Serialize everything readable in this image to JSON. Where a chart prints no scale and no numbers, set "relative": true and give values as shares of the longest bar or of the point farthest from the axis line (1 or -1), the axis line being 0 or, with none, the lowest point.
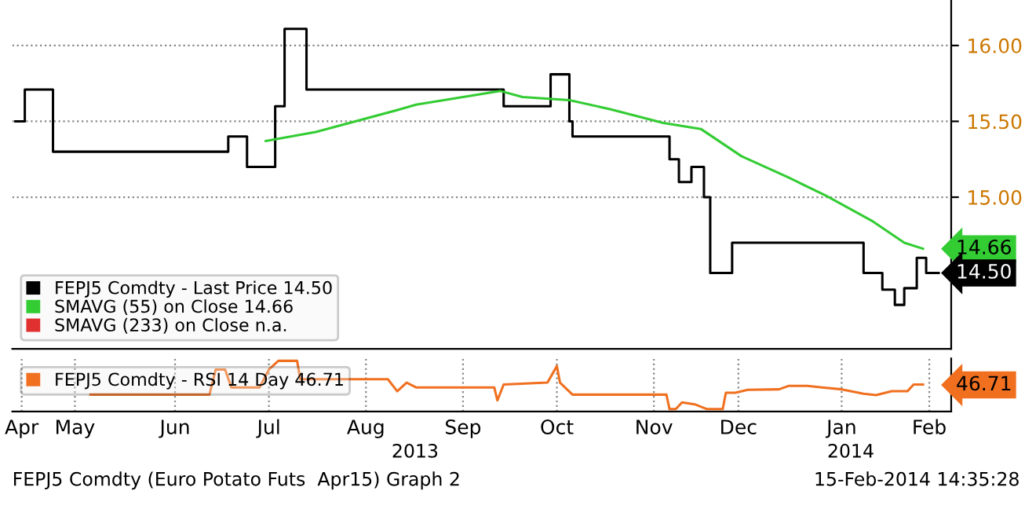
{
  "chart_data": [
    {
      "type": "step",
      "xlim": [
        "2013-04-24",
        "2014-02-18"
      ],
      "ylim": [
        14.0,
        16.3
      ],
      "yticks": [
        {
          "value": 15,
          "label": "15.00"
        },
        {
          "value": 15.5,
          "label": "15.50"
        },
        {
          "value": 16,
          "label": "16.00"
        }
      ],
      "grid": true,
      "legend": "bottom left",
      "tick_labels": "y",
      "series": [
        {
          "name": "FEPJ5 Comdty - Last Price 14.50",
          "color": "#000000",
          "x": [
            "2013-04-25",
            "2013-04-28",
            "2013-05-07",
            "2013-07-02",
            "2013-07-08",
            "2013-07-17",
            "2013-07-20",
            "2013-07-27",
            "2013-09-28",
            "2013-10-13",
            "2013-10-19",
            "2013-10-20",
            "2013-11-20",
            "2013-11-23",
            "2013-11-27",
            "2013-12-01",
            "2013-12-03",
            "2013-12-10",
            "2014-01-21",
            "2014-01-27",
            "2014-01-31",
            "2014-02-03",
            "2014-02-07",
            "2014-02-10",
            "2014-02-14"
          ],
          "values": [
            15.5,
            15.71,
            15.3,
            15.4,
            15.2,
            15.6,
            16.11,
            15.71,
            15.6,
            15.81,
            15.5,
            15.4,
            15.25,
            15.1,
            15.2,
            15.0,
            14.5,
            14.7,
            14.5,
            14.39,
            14.29,
            14.4,
            14.6,
            14.5,
            14.5
          ]
        },
        {
          "name": "SMAVG (55) on Close 14.66",
          "color": "#33cc33",
          "type": "line",
          "x": [
            "2013-07-14",
            "2013-07-30",
            "2013-08-26",
            "2013-08-31",
            "2013-09-27",
            "2013-10-04",
            "2013-10-19",
            "2013-11-01",
            "2013-11-18",
            "2013-11-30",
            "2013-12-13",
            "2013-12-28",
            "2014-01-09",
            "2014-01-24",
            "2014-02-03",
            "2014-02-09"
          ],
          "values": [
            15.37,
            15.43,
            15.58,
            15.61,
            15.7,
            15.66,
            15.64,
            15.58,
            15.49,
            15.45,
            15.27,
            15.13,
            15.01,
            14.84,
            14.7,
            14.66
          ]
        },
        {
          "name": "SMAVG (233) on Close n.a.",
          "color": "#e03030",
          "type": "line"
        }
      ],
      "annotations": [
        {
          "text": "14.66",
          "x": "2014-02-09",
          "y": 14.66
        },
        {
          "text": "14.50",
          "x": "2014-02-14",
          "y": 14.5
        }
      ]
    },
    {
      "type": "line",
      "relative": true,
      "xlim": [
        "2013-04-24",
        "2014-02-18"
      ],
      "xticks": [
        {
          "value": "2013-04-27",
          "label": "Apr"
        },
        {
          "value": "2013-05-14",
          "label": "May"
        },
        {
          "value": "2013-06-15",
          "label": "Jun"
        },
        {
          "value": "2013-07-15",
          "label": "Jul"
        },
        {
          "value": "2013-08-15",
          "label": "Aug"
        },
        {
          "value": "2013-09-15",
          "label": "Sep"
        },
        {
          "value": "2013-10-15",
          "label": "Oct"
        },
        {
          "value": "2013-11-15",
          "label": "Nov"
        },
        {
          "value": "2013-12-12",
          "label": "Dec"
        },
        {
          "value": "2014-01-14",
          "label": "Jan"
        },
        {
          "value": "2014-02-11",
          "label": "Feb"
        }
      ],
      "grid": true,
      "legend": "top left",
      "tick_labels": "x",
      "series": [
        {
          "name": "FEPJ5 Comdty - RSI 14 Day 46.71",
          "color": "#f07020",
          "x": [
            "2013-05-19",
            "2013-06-26",
            "2013-06-28",
            "2013-07-01",
            "2013-07-03",
            "2013-07-12",
            "2013-07-15",
            "2013-07-18",
            "2013-07-24",
            "2013-07-25",
            "2013-08-22",
            "2013-08-25",
            "2013-08-28",
            "2013-08-31",
            "2013-09-25",
            "2013-09-26",
            "2013-09-28",
            "2013-10-12",
            "2013-10-15",
            "2013-10-16",
            "2013-10-20",
            "2013-11-19",
            "2013-11-20",
            "2013-11-22",
            "2013-11-24",
            "2013-11-28",
            "2013-12-02",
            "2013-12-07",
            "2013-12-08",
            "2013-12-11",
            "2013-12-15",
            "2013-12-25",
            "2013-12-28",
            "2014-01-03",
            "2014-01-09",
            "2014-01-14",
            "2014-01-21",
            "2014-01-25",
            "2014-01-30",
            "2014-02-04",
            "2014-02-06",
            "2014-02-09"
          ],
          "values": [
            0.3,
            0.3,
            0.82,
            0.82,
            0.45,
            0.45,
            0.82,
            1,
            1,
            0.62,
            0.62,
            0.37,
            0.55,
            0.45,
            0.45,
            0.18,
            0.51,
            0.55,
            0.89,
            0.55,
            0.3,
            0.3,
            0,
            0,
            0.14,
            0.1,
            0,
            0,
            0.34,
            0.34,
            0.4,
            0.41,
            0.48,
            0.48,
            0.44,
            0.41,
            0.32,
            0.29,
            0.37,
            0.37,
            0.51,
            0.51
          ]
        }
      ],
      "annotations": [
        "46.71",
        "2013",
        "2014",
        "FEPJ5 Comdty (Euro Potato Futs  Apr15) Graph 2",
        "15-Feb-2014 14:35:28"
      ]
    }
  ]
}
